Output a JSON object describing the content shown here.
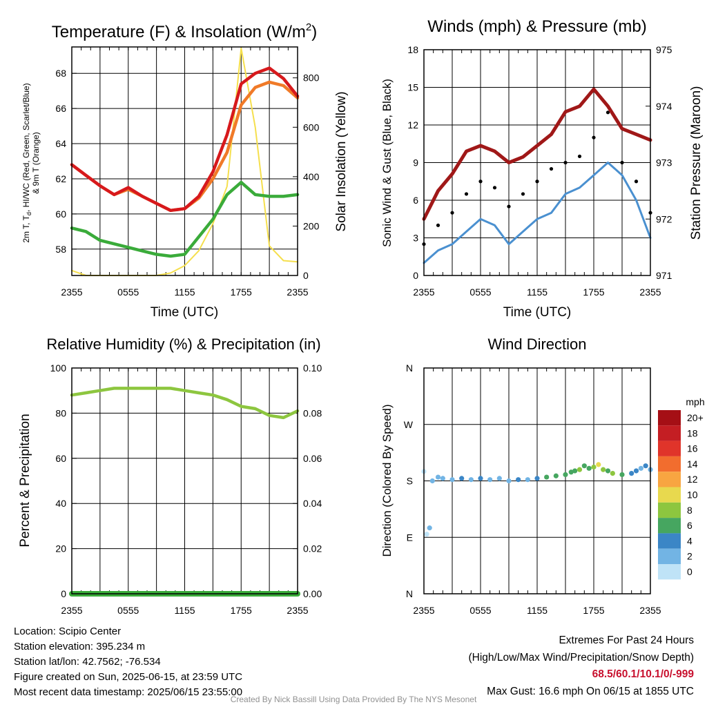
{
  "chart_data": [
    {
      "id": "temp",
      "type": "line",
      "title": "Temperature (F) & Insolation (W/m",
      "title_sup": "2",
      "title_end": ")",
      "xlabel": "Time (UTC)",
      "ylabel_lines": [
        "2m T, T",
        "d",
        ", HI/WC (Red, Green, Scarlet/Blue)",
        "& 9m T (Orange)"
      ],
      "ylabel2": "Solar Insolation (Yellow)",
      "x_ticks": [
        "2355",
        "0555",
        "1155",
        "1755",
        "2355"
      ],
      "ylim": [
        56.5,
        69.5
      ],
      "y_ticks": [
        58,
        60,
        62,
        64,
        66,
        68
      ],
      "y2lim": [
        0,
        925
      ],
      "y2_ticks": [
        0,
        200,
        400,
        600,
        800
      ],
      "x_hours": [
        0,
        1.5,
        3,
        4.5,
        6,
        7.5,
        9,
        10.5,
        12,
        13.5,
        15,
        16.5,
        18,
        19.5,
        21,
        22.5,
        24
      ],
      "series": [
        {
          "name": "Temperature",
          "color": "#d7191c",
          "axis": "left",
          "width": 4.5,
          "values": [
            62.8,
            62.2,
            61.6,
            61.1,
            61.5,
            61.0,
            60.6,
            60.2,
            60.3,
            61.0,
            62.4,
            64.5,
            67.4,
            68.0,
            68.3,
            67.7,
            66.7
          ]
        },
        {
          "name": "9m Temperature",
          "color": "#f07a28",
          "axis": "left",
          "width": 4.5,
          "values": [
            62.8,
            62.2,
            61.6,
            61.1,
            61.4,
            61.0,
            60.6,
            60.2,
            60.3,
            60.9,
            62.0,
            63.5,
            66.2,
            67.2,
            67.5,
            67.3,
            66.6
          ]
        },
        {
          "name": "Dew Point",
          "color": "#3aab3a",
          "axis": "left",
          "width": 4.5,
          "values": [
            59.2,
            59.0,
            58.5,
            58.3,
            58.1,
            57.9,
            57.7,
            57.6,
            57.7,
            58.7,
            59.7,
            61.1,
            61.8,
            61.1,
            61.0,
            61.0,
            61.1
          ]
        },
        {
          "name": "Solar Insolation",
          "color": "#f5df4d",
          "axis": "right",
          "width": 2,
          "values": [
            20,
            0,
            0,
            0,
            0,
            0,
            0,
            10,
            40,
            100,
            210,
            360,
            920,
            600,
            120,
            60,
            55
          ]
        }
      ]
    },
    {
      "id": "winds",
      "type": "line",
      "title": "Winds (mph) & Pressure (mb)",
      "xlabel": "Time (UTC)",
      "ylabel": "Sonic Wind & Gust (Blue, Black)",
      "ylabel2": "Station Pressure (Maroon)",
      "x_ticks": [
        "2355",
        "0555",
        "1155",
        "1755",
        "2355"
      ],
      "ylim": [
        0,
        18
      ],
      "y_ticks": [
        0,
        3,
        6,
        9,
        12,
        15,
        18
      ],
      "y2lim": [
        971,
        975
      ],
      "y2_ticks": [
        971,
        972,
        973,
        974,
        975
      ],
      "x_hours": [
        0,
        1.5,
        3,
        4.5,
        6,
        7.5,
        9,
        10.5,
        12,
        13.5,
        15,
        16.5,
        18,
        19.5,
        21,
        22.5,
        24
      ],
      "series": [
        {
          "name": "Sonic Wind",
          "color": "#4a90d0",
          "axis": "left",
          "width": 3,
          "values": [
            1.0,
            2.0,
            2.5,
            3.5,
            4.5,
            4.0,
            2.5,
            3.5,
            4.5,
            5.0,
            6.5,
            7.0,
            8.0,
            9.0,
            8.0,
            6.0,
            3.0
          ]
        },
        {
          "name": "Sonic Gust",
          "color": "#000000",
          "axis": "left",
          "type": "scatter",
          "values": [
            2.5,
            4.0,
            5.0,
            6.5,
            7.5,
            7.0,
            5.5,
            6.5,
            7.5,
            8.5,
            9.0,
            9.5,
            11.0,
            13.0,
            9.0,
            7.5,
            5.0
          ]
        },
        {
          "name": "Station Pressure",
          "color": "#a01818",
          "axis": "right",
          "width": 5,
          "values": [
            972.0,
            972.5,
            972.8,
            973.2,
            973.3,
            973.2,
            973.0,
            973.1,
            973.3,
            973.5,
            973.9,
            974.0,
            974.3,
            974.0,
            973.6,
            973.5,
            973.4
          ]
        }
      ]
    },
    {
      "id": "rh",
      "type": "line",
      "title": "Relative Humidity (%) & Precipitation (in)",
      "ylabel": "Percent & Precipitation",
      "x_ticks": [
        "2355",
        "0555",
        "1155",
        "1755",
        "2355"
      ],
      "ylim": [
        0,
        100
      ],
      "y_ticks": [
        0,
        20,
        40,
        60,
        80,
        100
      ],
      "y2lim": [
        0,
        0.1
      ],
      "y2_ticks": [
        "0.00",
        "0.02",
        "0.04",
        "0.06",
        "0.08",
        "0.10"
      ],
      "x_hours": [
        0,
        1.5,
        3,
        4.5,
        6,
        7.5,
        9,
        10.5,
        12,
        13.5,
        15,
        16.5,
        18,
        19.5,
        21,
        22.5,
        24
      ],
      "series": [
        {
          "name": "Relative Humidity",
          "color": "#8dc63f",
          "axis": "left",
          "width": 4.5,
          "values": [
            88,
            89,
            90,
            91,
            91,
            91,
            91,
            91,
            90,
            89,
            88,
            86,
            83,
            82,
            79,
            78,
            81
          ]
        },
        {
          "name": "Precipitation",
          "color": "#3aab3a",
          "axis": "right",
          "width": 8,
          "values": [
            0,
            0,
            0,
            0,
            0,
            0,
            0,
            0,
            0,
            0,
            0,
            0,
            0,
            0,
            0,
            0,
            0
          ]
        }
      ]
    },
    {
      "id": "wdir",
      "type": "scatter",
      "title": "Wind Direction",
      "ylabel": "Direction (Colored By Speed)",
      "x_ticks": [
        "2355",
        "0555",
        "1155",
        "1755",
        "2355"
      ],
      "y_ticks": [
        "N",
        "E",
        "S",
        "W",
        "N"
      ],
      "ylim": [
        0,
        360
      ],
      "x_hours": [
        0,
        0.3,
        0.6,
        0.9,
        1.5,
        2,
        3,
        4,
        5,
        6,
        7,
        8,
        9,
        10,
        11,
        12,
        13,
        14,
        15,
        15.6,
        16,
        16.5,
        17,
        17.5,
        18,
        18.5,
        19,
        19.5,
        20,
        21,
        22,
        22.5,
        23,
        23.5,
        24
      ],
      "points": [
        {
          "dir": 195,
          "speed": 1
        },
        {
          "dir": 95,
          "speed": 1
        },
        {
          "dir": 105,
          "speed": 2
        },
        {
          "dir": 180,
          "speed": 2
        },
        {
          "dir": 186,
          "speed": 2
        },
        {
          "dir": 184,
          "speed": 3
        },
        {
          "dir": 182,
          "speed": 2
        },
        {
          "dir": 184,
          "speed": 4
        },
        {
          "dir": 182,
          "speed": 3
        },
        {
          "dir": 184,
          "speed": 4
        },
        {
          "dir": 182,
          "speed": 3
        },
        {
          "dir": 184,
          "speed": 2
        },
        {
          "dir": 180,
          "speed": 3
        },
        {
          "dir": 182,
          "speed": 4
        },
        {
          "dir": 182,
          "speed": 3
        },
        {
          "dir": 184,
          "speed": 5
        },
        {
          "dir": 186,
          "speed": 6
        },
        {
          "dir": 188,
          "speed": 7
        },
        {
          "dir": 190,
          "speed": 6
        },
        {
          "dir": 194,
          "speed": 7
        },
        {
          "dir": 196,
          "speed": 6
        },
        {
          "dir": 198,
          "speed": 8
        },
        {
          "dir": 204,
          "speed": 7
        },
        {
          "dir": 200,
          "speed": 6
        },
        {
          "dir": 202,
          "speed": 9
        },
        {
          "dir": 206,
          "speed": 10
        },
        {
          "dir": 198,
          "speed": 8
        },
        {
          "dir": 196,
          "speed": 7
        },
        {
          "dir": 192,
          "speed": 8
        },
        {
          "dir": 190,
          "speed": 6
        },
        {
          "dir": 192,
          "speed": 5
        },
        {
          "dir": 196,
          "speed": 4
        },
        {
          "dir": 200,
          "speed": 3
        },
        {
          "dir": 204,
          "speed": 4
        },
        {
          "dir": 198,
          "speed": 3
        }
      ]
    }
  ],
  "colorbar": {
    "unit": "mph",
    "labels": [
      "20+",
      "18",
      "16",
      "14",
      "12",
      "10",
      "8",
      "6",
      "4",
      "2",
      "0"
    ],
    "colors": [
      "#a50f15",
      "#c41e23",
      "#e0342a",
      "#f26d2e",
      "#f8a541",
      "#e8d94e",
      "#8dc63f",
      "#46a660",
      "#3b86c6",
      "#72b4e4",
      "#bfe3f7"
    ]
  },
  "info": {
    "location": "Location: Scipio Center",
    "elevation": "Station elevation: 395.234 m",
    "latlon": "Station lat/lon: 42.7562; -76.534",
    "created": "Figure created on Sun, 2025-06-15, at 23:59 UTC",
    "recent": "Most recent data timestamp: 2025/06/15 23:55:00"
  },
  "extremes": {
    "title": "Extremes For Past 24 Hours",
    "subtitle": "(High/Low/Max Wind/Precipitation/Snow Depth)",
    "values": "68.5/60.1/10.1/0/-999",
    "max_gust": "Max Gust: 16.6 mph On 06/15 at 1855 UTC"
  },
  "credit": "Created By Nick Bassill Using Data Provided By The NYS Mesonet"
}
